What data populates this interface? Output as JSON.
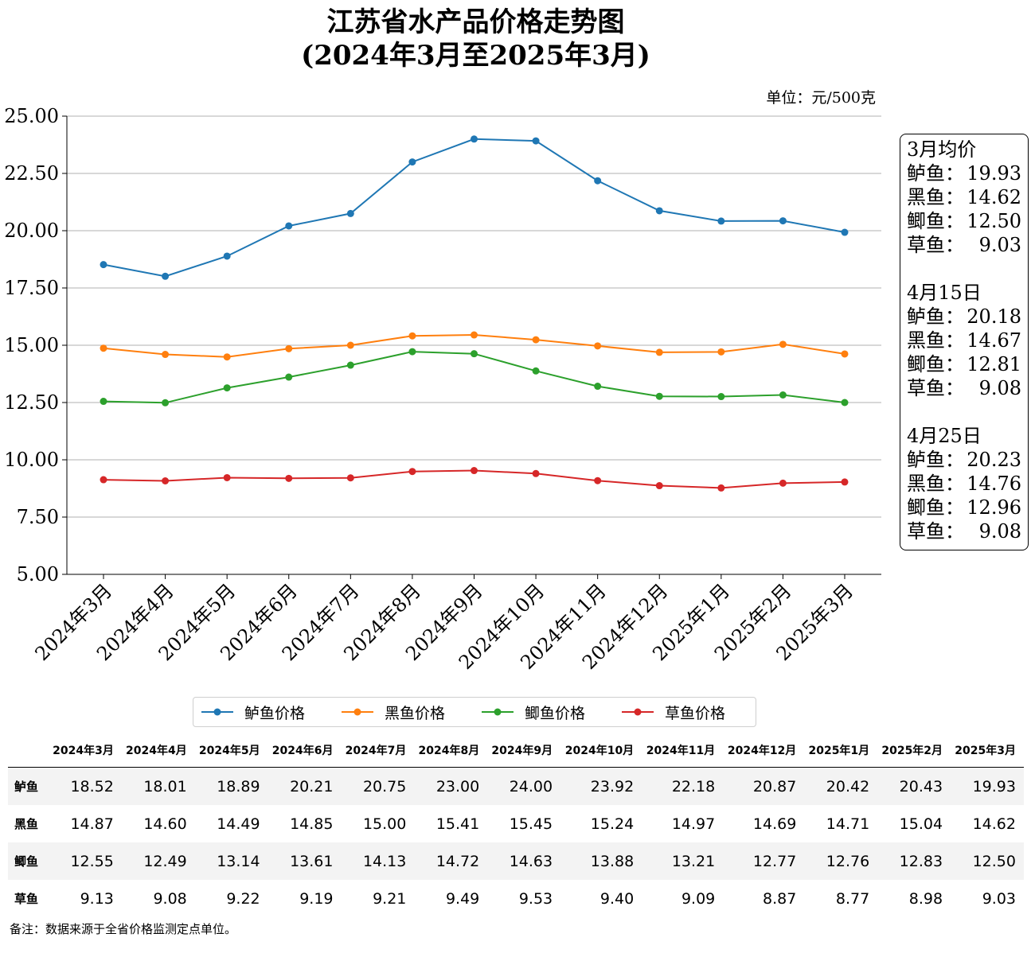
{
  "title_line1": "江苏省水产品价格走势图",
  "title_line2": "(2024年3月至2025年3月)",
  "unit": "单位：元/500克",
  "chart_data": {
    "type": "line",
    "title": "江苏省水产品价格走势图",
    "subtitle": "(2024年3月至2025年3月)",
    "categories": [
      "2024年3月",
      "2024年4月",
      "2024年5月",
      "2024年6月",
      "2024年7月",
      "2024年8月",
      "2024年9月",
      "2024年10月",
      "2024年11月",
      "2024年12月",
      "2025年1月",
      "2025年2月",
      "2025年3月"
    ],
    "ylim": [
      5.0,
      25.0
    ],
    "yticks": [
      "5.00",
      "7.50",
      "10.00",
      "12.50",
      "15.00",
      "17.50",
      "20.00",
      "22.50",
      "25.00"
    ],
    "grid": "horizontal",
    "legend_position": "bottom",
    "series": [
      {
        "name": "鲈鱼价格",
        "color": "#1f77b4",
        "values": [
          18.52,
          18.01,
          18.89,
          20.21,
          20.75,
          23.0,
          24.0,
          23.92,
          22.18,
          20.87,
          20.42,
          20.43,
          19.93
        ]
      },
      {
        "name": "黑鱼价格",
        "color": "#ff7f0e",
        "values": [
          14.87,
          14.6,
          14.49,
          14.85,
          15.0,
          15.41,
          15.45,
          15.24,
          14.97,
          14.69,
          14.71,
          15.04,
          14.62
        ]
      },
      {
        "name": "鲫鱼价格",
        "color": "#2ca02c",
        "values": [
          12.55,
          12.49,
          13.14,
          13.61,
          14.13,
          14.72,
          14.63,
          13.88,
          13.21,
          12.77,
          12.76,
          12.83,
          12.5
        ]
      },
      {
        "name": "草鱼价格",
        "color": "#d62728",
        "values": [
          9.13,
          9.08,
          9.22,
          9.19,
          9.21,
          9.49,
          9.53,
          9.4,
          9.09,
          8.87,
          8.77,
          8.98,
          9.03
        ]
      }
    ]
  },
  "avg_box": [
    {
      "title": "3月均价",
      "items": [
        {
          "name": "鲈鱼：",
          "value": "19.93"
        },
        {
          "name": "黑鱼：",
          "value": "14.62"
        },
        {
          "name": "鲫鱼：",
          "value": "12.50"
        },
        {
          "name": "草鱼：",
          "value": "9.03"
        }
      ]
    },
    {
      "title": "4月15日",
      "items": [
        {
          "name": "鲈鱼：",
          "value": "20.18"
        },
        {
          "name": "黑鱼：",
          "value": "14.67"
        },
        {
          "name": "鲫鱼：",
          "value": "12.81"
        },
        {
          "name": "草鱼：",
          "value": "9.08"
        }
      ]
    },
    {
      "title": "4月25日",
      "items": [
        {
          "name": "鲈鱼：",
          "value": "20.23"
        },
        {
          "name": "黑鱼：",
          "value": "14.76"
        },
        {
          "name": "鲫鱼：",
          "value": "12.96"
        },
        {
          "name": "草鱼：",
          "value": "9.08"
        }
      ]
    }
  ],
  "table": {
    "headers": [
      "2024年3月",
      "2024年4月",
      "2024年5月",
      "2024年6月",
      "2024年7月",
      "2024年8月",
      "2024年9月",
      "2024年10月",
      "2024年11月",
      "2024年12月",
      "2025年1月",
      "2025年2月",
      "2025年3月"
    ],
    "rows": [
      {
        "label": "鲈鱼",
        "values": [
          "18.52",
          "18.01",
          "18.89",
          "20.21",
          "20.75",
          "23.00",
          "24.00",
          "23.92",
          "22.18",
          "20.87",
          "20.42",
          "20.43",
          "19.93"
        ]
      },
      {
        "label": "黑鱼",
        "values": [
          "14.87",
          "14.60",
          "14.49",
          "14.85",
          "15.00",
          "15.41",
          "15.45",
          "15.24",
          "14.97",
          "14.69",
          "14.71",
          "15.04",
          "14.62"
        ]
      },
      {
        "label": "鲫鱼",
        "values": [
          "12.55",
          "12.49",
          "13.14",
          "13.61",
          "14.13",
          "14.72",
          "14.63",
          "13.88",
          "13.21",
          "12.77",
          "12.76",
          "12.83",
          "12.50"
        ]
      },
      {
        "label": "草鱼",
        "values": [
          "9.13",
          "9.08",
          "9.22",
          "9.19",
          "9.21",
          "9.49",
          "9.53",
          "9.40",
          "9.09",
          "8.87",
          "8.77",
          "8.98",
          "9.03"
        ]
      }
    ]
  },
  "note": "备注：数据来源于全省价格监测定点单位。"
}
